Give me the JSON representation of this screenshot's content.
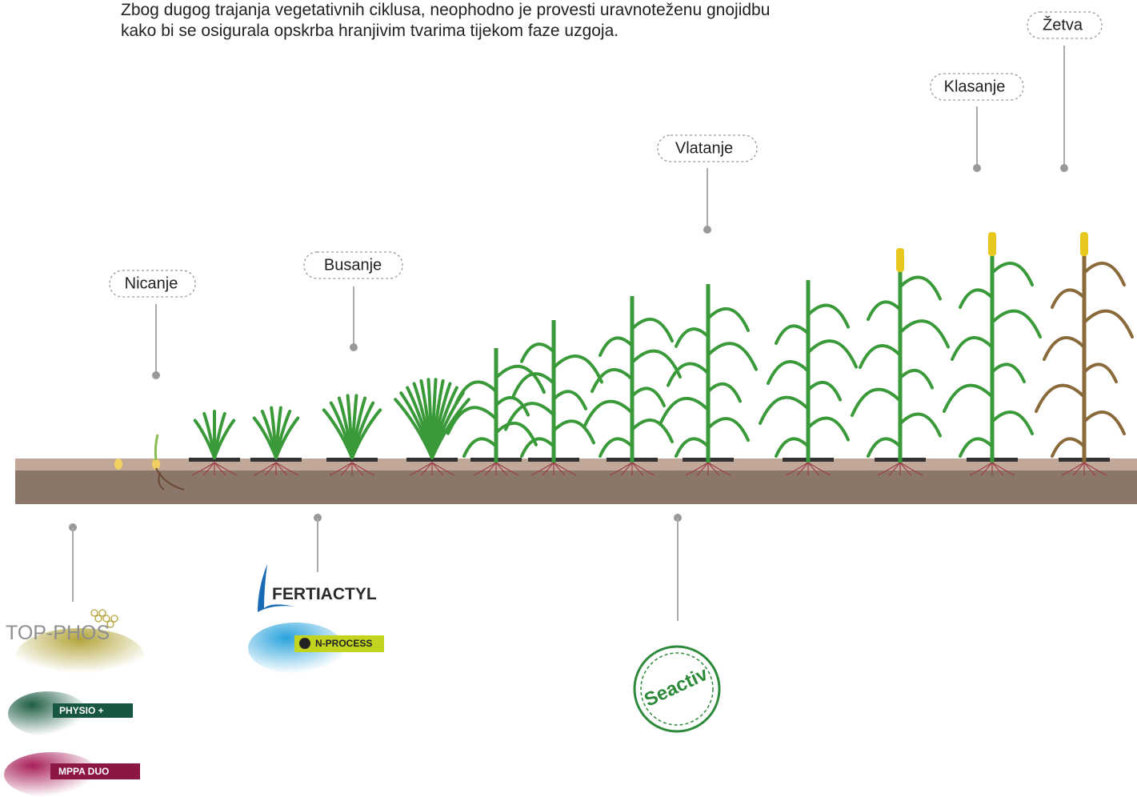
{
  "intro": [
    "Zbog dugog trajanja vegetativnih ciklusa, neophodno je provesti uravnoteženu gnojidbu",
    "kako bi se osigurala opskrba hranjivim tvarima tijekom faze uzgoja."
  ],
  "stages": [
    "Nicanje",
    "Busanje",
    "Vlatanje",
    "Klasanje",
    "Žetva"
  ],
  "products": {
    "top_phos": "TOP-PHOS",
    "physio": "PHYSIO +",
    "mppa": "MPPA DUO",
    "fertiactyl": "FERTIACTYL",
    "nprocess": "N-PROCESS",
    "seactiv": "Seactiv"
  }
}
